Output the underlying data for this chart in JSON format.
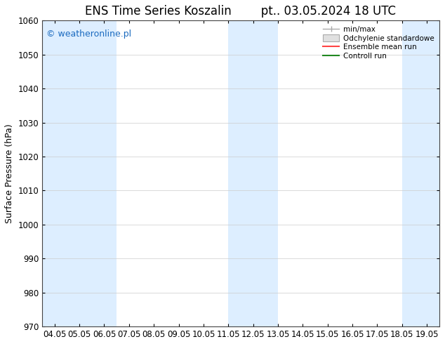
{
  "title_left": "ENS Time Series Koszalin",
  "title_right": "pt.. 03.05.2024 18 UTC",
  "ylabel": "Surface Pressure (hPa)",
  "ylim": [
    970,
    1060
  ],
  "yticks": [
    970,
    980,
    990,
    1000,
    1010,
    1020,
    1030,
    1040,
    1050,
    1060
  ],
  "x_labels": [
    "04.05",
    "05.05",
    "06.05",
    "07.05",
    "08.05",
    "09.05",
    "10.05",
    "11.05",
    "12.05",
    "13.05",
    "14.05",
    "15.05",
    "16.05",
    "17.05",
    "18.05",
    "19.05"
  ],
  "x_values": [
    0,
    1,
    2,
    3,
    4,
    5,
    6,
    7,
    8,
    9,
    10,
    11,
    12,
    13,
    14,
    15
  ],
  "shaded_indices": [
    0,
    1,
    3,
    7,
    8,
    11,
    14
  ],
  "shaded_color": "#ddeeff",
  "background_color": "#ffffff",
  "watermark": "© weatheronline.pl",
  "watermark_color": "#1a6abf",
  "legend_entries": [
    "min/max",
    "Odchylenie standardowe",
    "Ensemble mean run",
    "Controll run"
  ],
  "minmax_color": "#aaaaaa",
  "std_color": "#cccccc",
  "ensemble_color": "#ff4444",
  "control_color": "#228822",
  "title_fontsize": 12,
  "tick_fontsize": 8.5,
  "ylabel_fontsize": 9
}
